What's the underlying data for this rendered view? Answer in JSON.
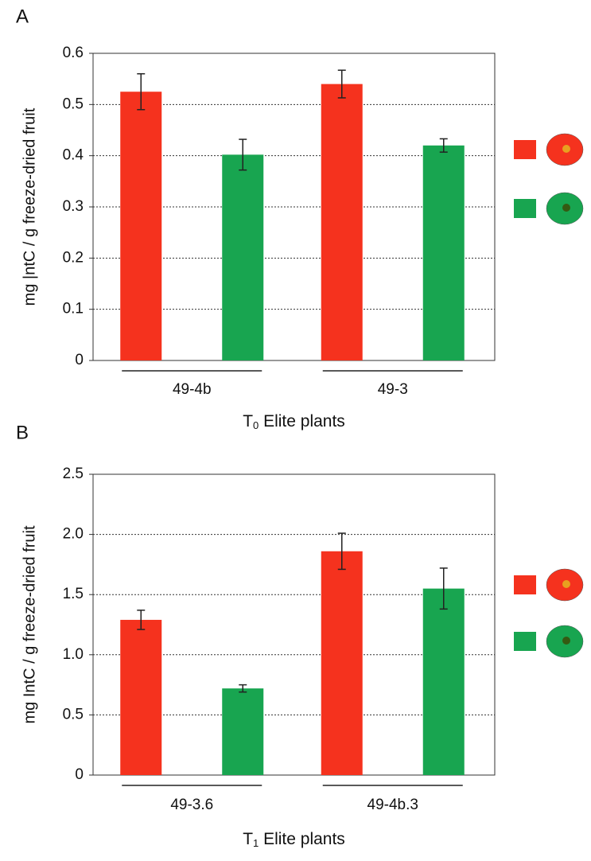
{
  "chart_data": [
    {
      "type": "bar",
      "panel": "A",
      "ylabel": "mg |ntC / g freeze-dried fruit",
      "xlabel": [
        "T",
        "0",
        " Elite plants"
      ],
      "categories": [
        "49-4b",
        "49-3"
      ],
      "series": [
        {
          "color": "#f5321e",
          "values": [
            0.525,
            0.54
          ],
          "errors": [
            0.035,
            0.027
          ]
        },
        {
          "color": "#18a550",
          "values": [
            0.402,
            0.42
          ],
          "errors": [
            0.03,
            0.013
          ]
        }
      ],
      "ylim": [
        0,
        0.6
      ],
      "yticks": [
        0,
        0.1,
        0.2,
        0.3,
        0.4,
        0.5,
        0.6
      ],
      "grid": true
    },
    {
      "type": "bar",
      "panel": "B",
      "ylabel": "mg IntC / g freeze-dried fruit",
      "xlabel": [
        "T",
        "1",
        " Elite plants"
      ],
      "categories": [
        "49-3.6",
        "49-4b.3"
      ],
      "series": [
        {
          "color": "#f5321e",
          "values": [
            1.29,
            1.86
          ],
          "errors": [
            0.08,
            0.15
          ]
        },
        {
          "color": "#18a550",
          "values": [
            0.72,
            1.55
          ],
          "errors": [
            0.03,
            0.17
          ]
        }
      ],
      "ylim": [
        0,
        2.5
      ],
      "yticks": [
        0,
        0.5,
        {
          "value": 1,
          "label": "1.0"
        },
        1.5,
        {
          "value": 2,
          "label": "2.0"
        },
        2.5
      ],
      "grid": true
    }
  ]
}
